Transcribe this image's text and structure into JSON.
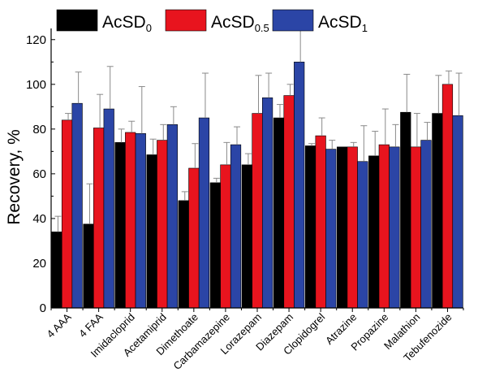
{
  "chart_data": {
    "type": "bar",
    "title": "",
    "xlabel": "",
    "ylabel": "Recovery, %",
    "ylim": [
      0,
      125
    ],
    "yticks": [
      0,
      20,
      40,
      60,
      80,
      100,
      120
    ],
    "grid": false,
    "legend_position": "top",
    "categories": [
      "4 AAA",
      "4 FAA",
      "Imidacloprid",
      "Acetamiprid",
      "Dimethoate",
      "Carbamazepine",
      "Lorazepam",
      "Diazepam",
      "Clopidogrel",
      "Atrazine",
      "Propazine",
      "Malathion",
      "Tebufenozide"
    ],
    "series": [
      {
        "name": "AcSD",
        "subscript": "0",
        "color": "#000000",
        "values": [
          34,
          37.5,
          74,
          68.5,
          48,
          56,
          64,
          85,
          72.5,
          72,
          68,
          87.5,
          87
        ],
        "errors": [
          7,
          18,
          6,
          7,
          4,
          2,
          5,
          6,
          1,
          0,
          11,
          17,
          17
        ]
      },
      {
        "name": "AcSD",
        "subscript": "0.5",
        "color": "#e8141e",
        "values": [
          84,
          80.5,
          78.5,
          75,
          62.5,
          64,
          87,
          95,
          77,
          72,
          73,
          72,
          100
        ],
        "errors": [
          3,
          15,
          5,
          7,
          11,
          10,
          17,
          5,
          8,
          2,
          16,
          15,
          6
        ]
      },
      {
        "name": "AcSD",
        "subscript": "1",
        "color": "#2b45a6",
        "values": [
          91.5,
          89,
          78,
          82,
          85,
          73,
          94,
          110,
          71,
          65.5,
          72,
          75,
          86
        ],
        "errors": [
          14,
          19,
          21,
          8,
          20,
          8,
          11,
          20,
          4,
          16,
          10,
          8,
          19
        ]
      }
    ]
  }
}
